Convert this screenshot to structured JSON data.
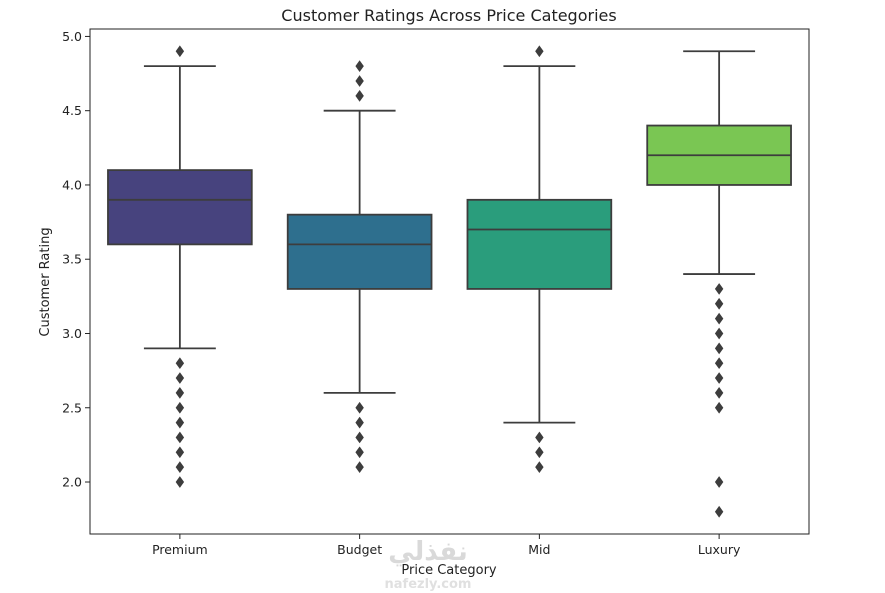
{
  "watermark": {
    "main": "نفذلي",
    "sub": "nafezly.com"
  },
  "chart_data": {
    "type": "box",
    "title": "Customer Ratings Across Price Categories",
    "xlabel": "Price Category",
    "ylabel": "Customer Rating",
    "ylim": [
      1.65,
      5.05
    ],
    "yticks": [
      2.0,
      2.5,
      3.0,
      3.5,
      4.0,
      4.5,
      5.0
    ],
    "ytick_labels": [
      "2.0",
      "2.5",
      "3.0",
      "3.5",
      "4.0",
      "4.5",
      "5.0"
    ],
    "grid": false,
    "categories": [
      "Premium",
      "Budget",
      "Mid",
      "Luxury"
    ],
    "boxes": [
      {
        "category": "Premium",
        "whisker_low": 2.9,
        "q1": 3.6,
        "median": 3.9,
        "q3": 4.1,
        "whisker_high": 4.8,
        "outliers": [
          4.9,
          2.8,
          2.7,
          2.6,
          2.5,
          2.4,
          2.3,
          2.2,
          2.1,
          2.0
        ],
        "color": "#47437e"
      },
      {
        "category": "Budget",
        "whisker_low": 2.6,
        "q1": 3.3,
        "median": 3.6,
        "q3": 3.8,
        "whisker_high": 4.5,
        "outliers": [
          4.8,
          4.7,
          4.6,
          2.5,
          2.4,
          2.3,
          2.2,
          2.1
        ],
        "color": "#2e6f8e"
      },
      {
        "category": "Mid",
        "whisker_low": 2.4,
        "q1": 3.3,
        "median": 3.7,
        "q3": 3.9,
        "whisker_high": 4.8,
        "outliers": [
          4.9,
          2.3,
          2.2,
          2.1
        ],
        "color": "#2a9d7c"
      },
      {
        "category": "Luxury",
        "whisker_low": 3.4,
        "q1": 4.0,
        "median": 4.2,
        "q3": 4.4,
        "whisker_high": 4.9,
        "outliers": [
          3.3,
          3.2,
          3.1,
          3.0,
          2.9,
          2.8,
          2.7,
          2.6,
          2.5,
          2.0,
          1.8
        ],
        "color": "#7ac653"
      }
    ]
  }
}
